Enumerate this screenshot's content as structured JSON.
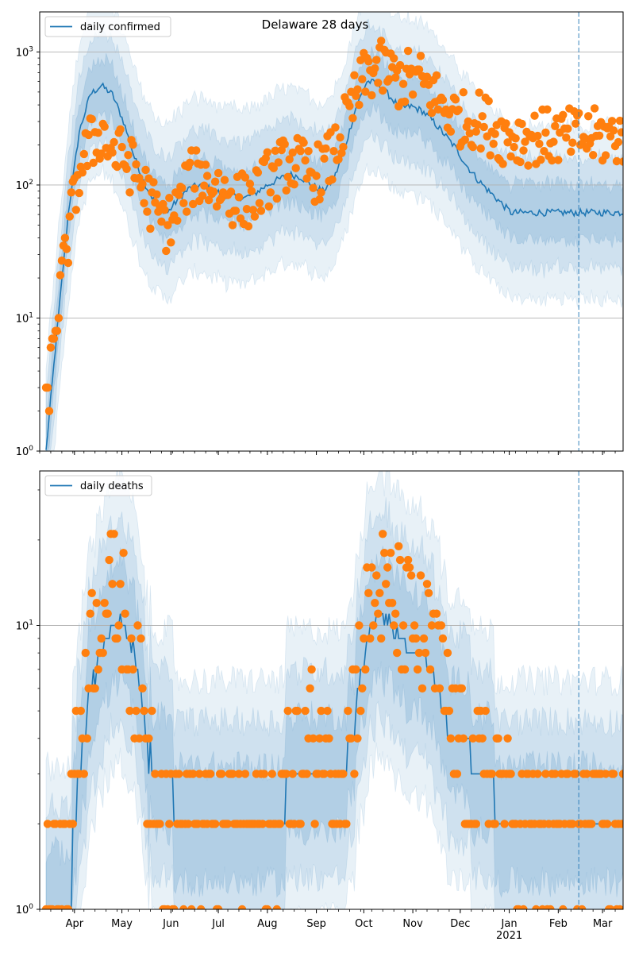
{
  "chart_data": [
    {
      "type": "line",
      "id": "confirmed",
      "title": "Delaware 28 days",
      "legend": {
        "label": "daily confirmed",
        "placement": "upper-left"
      },
      "yscale": "log",
      "ylim": [
        1,
        2000
      ],
      "yticks": [
        {
          "value": 1,
          "base": "10",
          "exp": "0"
        },
        {
          "value": 10,
          "base": "10",
          "exp": "1"
        },
        {
          "value": 100,
          "base": "10",
          "exp": "2"
        },
        {
          "value": 1000,
          "base": "10",
          "exp": "3"
        }
      ],
      "grid": "y-major",
      "xlim": [
        "2020-03-10",
        "2021-03-14"
      ],
      "vline": "2021-02-14",
      "model_weekly": {
        "start": "2020-03-14",
        "values": [
          1,
          8,
          60,
          250,
          480,
          560,
          480,
          300,
          160,
          100,
          70,
          62,
          80,
          95,
          100,
          92,
          85,
          82,
          80,
          88,
          100,
          110,
          120,
          115,
          100,
          90,
          110,
          190,
          380,
          600,
          580,
          470,
          380,
          390,
          360,
          300,
          240,
          190,
          140,
          110,
          90,
          75,
          62
        ],
        "band50_factor": 1.6,
        "band80_factor": 2.6,
        "band95_factor": 4.5
      },
      "observed_weekly": {
        "start": "2020-03-14",
        "values": [
          2,
          11,
          40,
          130,
          200,
          250,
          180,
          160,
          130,
          90,
          60,
          50,
          70,
          110,
          120,
          100,
          90,
          80,
          75,
          85,
          110,
          130,
          150,
          140,
          120,
          130,
          170,
          280,
          450,
          700,
          750,
          700,
          600,
          650,
          600,
          480,
          380,
          330,
          300,
          320,
          280,
          240,
          230
        ]
      }
    },
    {
      "type": "line",
      "id": "deaths",
      "title": "",
      "legend": {
        "label": "daily deaths",
        "placement": "upper-left"
      },
      "yscale": "log",
      "ylim": [
        1,
        35
      ],
      "yticks": [
        {
          "value": 1,
          "base": "10",
          "exp": "0"
        },
        {
          "value": 10,
          "base": "10",
          "exp": "1"
        }
      ],
      "grid": "y-major",
      "xlim": [
        "2020-03-10",
        "2021-03-14"
      ],
      "vline": "2021-02-14",
      "model_weekly": {
        "start": "2020-03-14",
        "values": [
          1,
          1,
          1,
          3,
          6,
          8,
          10,
          10,
          8,
          4,
          3,
          3,
          2,
          2,
          2,
          2,
          2,
          2,
          2,
          2,
          2,
          2,
          3,
          3,
          3,
          3,
          3,
          3,
          5,
          9,
          11,
          10,
          9,
          8,
          8,
          7,
          5,
          4,
          4,
          3,
          3,
          2,
          2
        ],
        "band50_factor": 1.6,
        "band80_factor": 2.3,
        "band95_factor": 3.2
      },
      "observed_weekly": {
        "start": "2020-03-14",
        "values": [
          1,
          1,
          2,
          4,
          8,
          12,
          13,
          11,
          7,
          4,
          3,
          2,
          2,
          2,
          2,
          2,
          2,
          2,
          2,
          2,
          2,
          2,
          3,
          3,
          4,
          4,
          3,
          3,
          6,
          10,
          14,
          12,
          11,
          10,
          9,
          8,
          6,
          4,
          3,
          3,
          3,
          3,
          2
        ]
      }
    }
  ],
  "xaxis": {
    "month_labels": [
      {
        "date": "2020-04-01",
        "label": "Apr"
      },
      {
        "date": "2020-05-01",
        "label": "May"
      },
      {
        "date": "2020-06-01",
        "label": "Jun"
      },
      {
        "date": "2020-07-01",
        "label": "Jul"
      },
      {
        "date": "2020-08-01",
        "label": "Aug"
      },
      {
        "date": "2020-09-01",
        "label": "Sep"
      },
      {
        "date": "2020-10-01",
        "label": "Oct"
      },
      {
        "date": "2020-11-01",
        "label": "Nov"
      },
      {
        "date": "2020-12-01",
        "label": "Dec"
      },
      {
        "date": "2021-01-01",
        "label": "Jan"
      },
      {
        "date": "2021-02-01",
        "label": "Feb"
      },
      {
        "date": "2021-03-01",
        "label": "Mar"
      }
    ],
    "year_label": {
      "date": "2021-01-01",
      "label": "2021"
    }
  },
  "colors": {
    "line": "#1f77b4",
    "points": "#ff7f0e",
    "band": "#1f77b4",
    "grid": "#b0b0b0",
    "vline": "#1f77b4"
  }
}
